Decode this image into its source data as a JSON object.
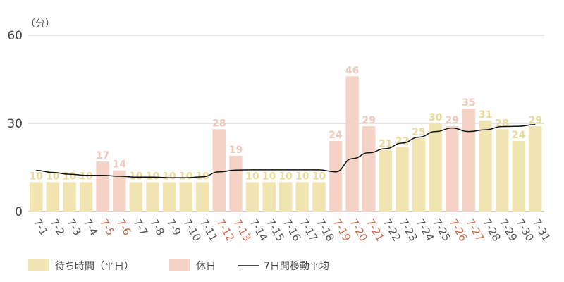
{
  "chart_data": {
    "type": "bar",
    "unit_label": "（分）",
    "ylim": [
      0,
      60
    ],
    "yticks": [
      0,
      30,
      60
    ],
    "grid": true,
    "legend_placement": "bottom-left",
    "categories": [
      "7-1",
      "7-2",
      "7-3",
      "7-4",
      "7-5",
      "7-6",
      "7-7",
      "7-8",
      "7-9",
      "7-10",
      "7-11",
      "7-12",
      "7-13",
      "7-14",
      "7-15",
      "7-16",
      "7-17",
      "7-18",
      "7-19",
      "7-20",
      "7-21",
      "7-22",
      "7-23",
      "7-24",
      "7-25",
      "7-26",
      "7-27",
      "7-28",
      "7-29",
      "7-30",
      "7-31"
    ],
    "series": [
      {
        "name": "待ち時間（平日）",
        "type": "bar",
        "color": "#efe4b2",
        "label_color": "#e9d999",
        "values": [
          10,
          10,
          10,
          10,
          null,
          null,
          10,
          10,
          10,
          10,
          10,
          null,
          null,
          10,
          10,
          10,
          10,
          10,
          null,
          null,
          null,
          21,
          22,
          25,
          30,
          null,
          null,
          31,
          28,
          24,
          29
        ]
      },
      {
        "name": "休日",
        "type": "bar",
        "color": "#f5d2c6",
        "label_color": "#eec9bc",
        "values": [
          null,
          null,
          null,
          null,
          17,
          14,
          null,
          null,
          null,
          null,
          null,
          28,
          19,
          null,
          null,
          null,
          null,
          null,
          24,
          46,
          29,
          null,
          null,
          null,
          null,
          29,
          35,
          null,
          null,
          null,
          null
        ]
      },
      {
        "name": "7日間移動平均",
        "type": "line",
        "color": "#111111",
        "values": [
          14,
          13.3,
          12.7,
          12.3,
          12.3,
          12,
          11.7,
          11.7,
          11.5,
          11.5,
          11.8,
          13.5,
          14.1,
          14.2,
          14.2,
          14.2,
          14.2,
          14.2,
          13.5,
          18,
          20,
          21.4,
          23.3,
          25.3,
          27.2,
          28.4,
          27.2,
          27.8,
          28.9,
          29,
          29.6
        ]
      }
    ],
    "holiday_tick_color": "#c8674a",
    "weekday_tick_color": "#555555"
  }
}
